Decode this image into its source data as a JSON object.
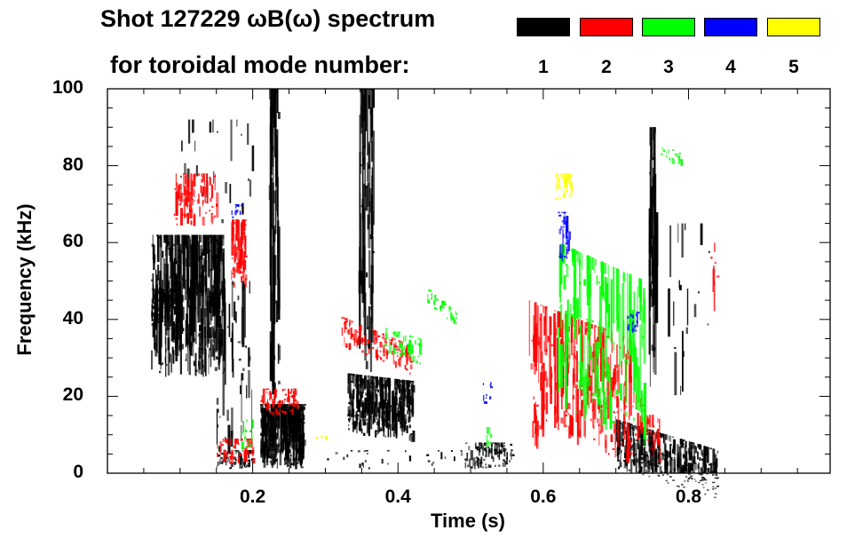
{
  "chart_data": {
    "type": "heatmap",
    "title_line1": "Shot 127229 ωB(ω) spectrum",
    "title_line2": "for toroidal mode number:",
    "xlabel": "Time (s)",
    "ylabel": "Frequency (kHz)",
    "xlim": [
      0,
      0.995
    ],
    "ylim": [
      0,
      100
    ],
    "x_ticks": [
      "0.2",
      "0.4",
      "0.6",
      "0.8"
    ],
    "x_tick_values": [
      0.2,
      0.4,
      0.6,
      0.8
    ],
    "y_ticks": [
      "0",
      "20",
      "40",
      "60",
      "80",
      "100"
    ],
    "y_tick_values": [
      0,
      20,
      40,
      60,
      80,
      100
    ],
    "legend": [
      {
        "label": "1",
        "color": "#000000"
      },
      {
        "label": "2",
        "color": "#ff0000"
      },
      {
        "label": "3",
        "color": "#00ff00"
      },
      {
        "label": "4",
        "color": "#0000ff"
      },
      {
        "label": "5",
        "color": "#ffff00"
      }
    ],
    "regions": [
      {
        "mode": 1,
        "t": [
          0.06,
          0.16
        ],
        "f": [
          25,
          62
        ],
        "drift": 0,
        "n": 420
      },
      {
        "mode": 1,
        "t": [
          0.06,
          0.1
        ],
        "f": [
          38,
          48
        ],
        "drift": 0,
        "n": 120
      },
      {
        "mode": 1,
        "t": [
          0.15,
          0.2
        ],
        "f": [
          3,
          50
        ],
        "drift": 0,
        "n": 60
      },
      {
        "mode": 1,
        "t": [
          0.15,
          0.2
        ],
        "f": [
          1,
          6
        ],
        "drift": 0,
        "n": 60
      },
      {
        "mode": 1,
        "t": [
          0.21,
          0.27
        ],
        "f": [
          1,
          18
        ],
        "drift": 0,
        "n": 380
      },
      {
        "mode": 1,
        "t": [
          0.222,
          0.235
        ],
        "f": [
          18,
          100
        ],
        "drift": 0,
        "n": 70
      },
      {
        "mode": 1,
        "t": [
          0.33,
          0.42
        ],
        "f": [
          10,
          26
        ],
        "drift": -2,
        "n": 380
      },
      {
        "mode": 1,
        "t": [
          0.345,
          0.365
        ],
        "f": [
          26,
          100
        ],
        "drift": 0,
        "n": 80
      },
      {
        "mode": 1,
        "t": [
          0.49,
          0.56
        ],
        "f": [
          1,
          8
        ],
        "drift": 0,
        "n": 90
      },
      {
        "mode": 1,
        "t": [
          0.7,
          0.84
        ],
        "f": [
          1,
          14
        ],
        "drift": -8,
        "n": 380
      },
      {
        "mode": 1,
        "t": [
          0.745,
          0.755
        ],
        "f": [
          20,
          90
        ],
        "drift": 0,
        "n": 50
      },
      {
        "mode": 1,
        "t": [
          0.1,
          0.2
        ],
        "f": [
          65,
          92
        ],
        "drift": 0,
        "n": 25
      },
      {
        "mode": 1,
        "t": [
          0.3,
          0.55
        ],
        "f": [
          1,
          6
        ],
        "drift": 0,
        "n": 45
      },
      {
        "mode": 1,
        "t": [
          0.77,
          0.83
        ],
        "f": [
          20,
          65
        ],
        "drift": 0,
        "n": 20
      },
      {
        "mode": 2,
        "t": [
          0.09,
          0.15
        ],
        "f": [
          64,
          78
        ],
        "drift": 0,
        "n": 90
      },
      {
        "mode": 2,
        "t": [
          0.17,
          0.19
        ],
        "f": [
          48,
          66
        ],
        "drift": 0,
        "n": 60
      },
      {
        "mode": 2,
        "t": [
          0.15,
          0.2
        ],
        "f": [
          2,
          9
        ],
        "drift": 0,
        "n": 60
      },
      {
        "mode": 2,
        "t": [
          0.21,
          0.26
        ],
        "f": [
          15,
          22
        ],
        "drift": 0,
        "n": 70
      },
      {
        "mode": 2,
        "t": [
          0.32,
          0.42
        ],
        "f": [
          33,
          41
        ],
        "drift": -8,
        "n": 120
      },
      {
        "mode": 2,
        "t": [
          0.58,
          0.72
        ],
        "f": [
          12,
          45
        ],
        "drift": -10,
        "n": 260
      },
      {
        "mode": 2,
        "t": [
          0.585,
          0.6
        ],
        "f": [
          5,
          20
        ],
        "drift": 0,
        "n": 25
      },
      {
        "mode": 2,
        "t": [
          0.72,
          0.76
        ],
        "f": [
          10,
          22
        ],
        "drift": -8,
        "n": 40
      },
      {
        "mode": 2,
        "t": [
          0.83,
          0.84
        ],
        "f": [
          40,
          60
        ],
        "drift": 0,
        "n": 8
      },
      {
        "mode": 3,
        "t": [
          0.38,
          0.43
        ],
        "f": [
          31,
          38
        ],
        "drift": -3,
        "n": 50
      },
      {
        "mode": 3,
        "t": [
          0.44,
          0.48
        ],
        "f": [
          44,
          48
        ],
        "drift": -6,
        "n": 45
      },
      {
        "mode": 3,
        "t": [
          0.62,
          0.74
        ],
        "f": [
          16,
          60
        ],
        "drift": -10,
        "n": 160
      },
      {
        "mode": 3,
        "t": [
          0.76,
          0.79
        ],
        "f": [
          82,
          86
        ],
        "drift": -3,
        "n": 20
      },
      {
        "mode": 3,
        "t": [
          0.18,
          0.2
        ],
        "f": [
          6,
          14
        ],
        "drift": 0,
        "n": 15
      },
      {
        "mode": 3,
        "t": [
          0.52,
          0.53
        ],
        "f": [
          6,
          12
        ],
        "drift": 0,
        "n": 8
      },
      {
        "mode": 4,
        "t": [
          0.62,
          0.635
        ],
        "f": [
          55,
          68
        ],
        "drift": 0,
        "n": 30
      },
      {
        "mode": 4,
        "t": [
          0.715,
          0.73
        ],
        "f": [
          36,
          42
        ],
        "drift": 0,
        "n": 18
      },
      {
        "mode": 4,
        "t": [
          0.515,
          0.53
        ],
        "f": [
          18,
          24
        ],
        "drift": 0,
        "n": 10
      },
      {
        "mode": 4,
        "t": [
          0.17,
          0.185
        ],
        "f": [
          66,
          70
        ],
        "drift": 0,
        "n": 10
      },
      {
        "mode": 5,
        "t": [
          0.615,
          0.64
        ],
        "f": [
          71,
          78
        ],
        "drift": 0,
        "n": 30
      },
      {
        "mode": 5,
        "t": [
          0.285,
          0.3
        ],
        "f": [
          8,
          10
        ],
        "drift": 0,
        "n": 6
      }
    ]
  }
}
